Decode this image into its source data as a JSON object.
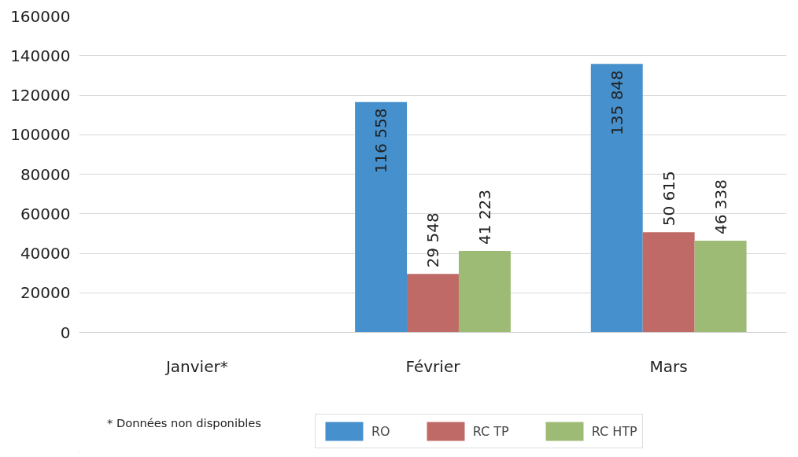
{
  "chart_data": {
    "type": "bar",
    "categories": [
      "Janvier*",
      "Février",
      "Mars"
    ],
    "series": [
      {
        "name": "RO",
        "color": "#4690cd",
        "values": [
          null,
          116558,
          135848
        ],
        "value_labels": [
          null,
          "116 558",
          "135 848"
        ]
      },
      {
        "name": "RC TP",
        "color": "#bf6a66",
        "values": [
          null,
          29548,
          50615
        ],
        "value_labels": [
          null,
          "29 548",
          "50 615"
        ]
      },
      {
        "name": "RC HTP",
        "color": "#9dbb74",
        "values": [
          null,
          41223,
          46338
        ],
        "value_labels": [
          null,
          "41 223",
          "46 338"
        ]
      }
    ],
    "ylim": [
      0,
      160000
    ],
    "yticks": [
      0,
      20000,
      40000,
      60000,
      80000,
      100000,
      120000,
      140000,
      160000
    ],
    "grid": "y",
    "legend": "bottom",
    "annotations": [
      "* Données non disponibles"
    ]
  }
}
